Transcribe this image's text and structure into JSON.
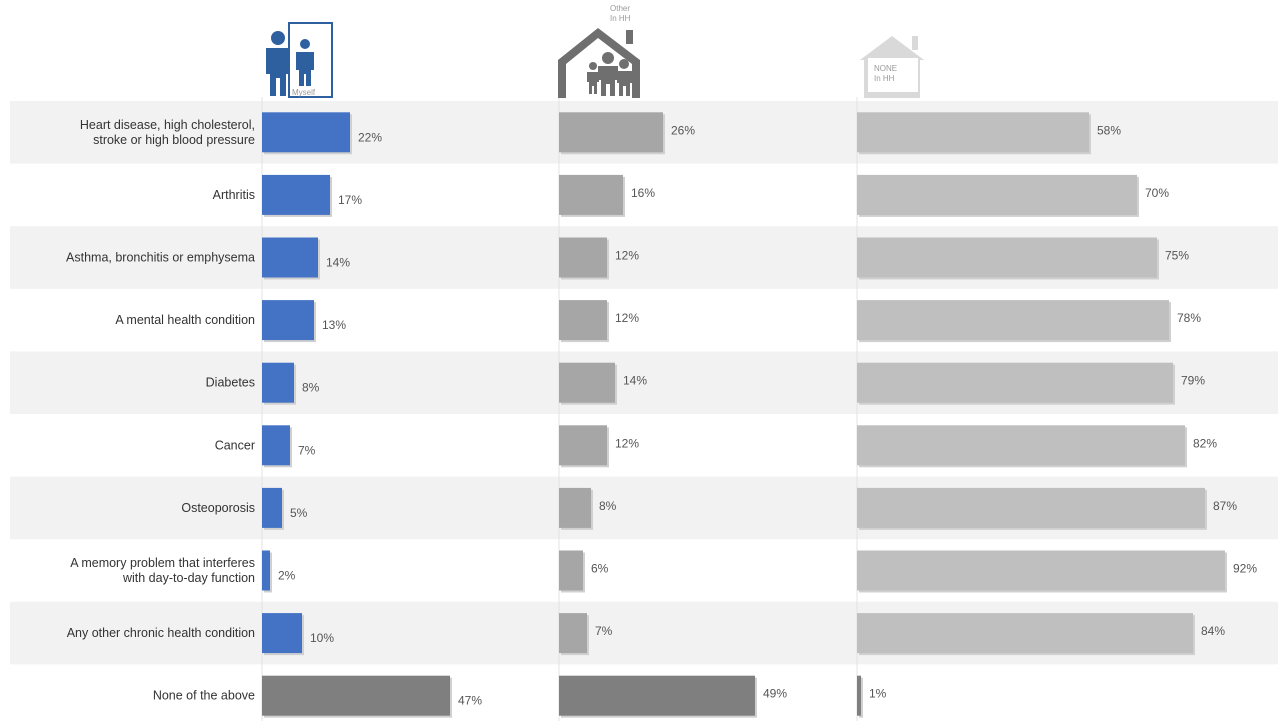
{
  "chart_data": {
    "type": "bar",
    "orientation": "horizontal",
    "categories": [
      [
        "Heart disease, high cholesterol,",
        "stroke or high blood pressure"
      ],
      [
        "Arthritis"
      ],
      [
        "Asthma, bronchitis or emphysema"
      ],
      [
        "A mental health condition"
      ],
      [
        "Diabetes"
      ],
      [
        "Cancer"
      ],
      [
        "Osteoporosis"
      ],
      [
        "A memory problem that interferes",
        "with day-to-day function"
      ],
      [
        "Any other chronic health condition"
      ],
      [
        "None of the above"
      ]
    ],
    "series": [
      {
        "name": "Myself",
        "values": [
          22,
          17,
          14,
          13,
          8,
          7,
          5,
          2,
          10,
          47
        ],
        "labels": [
          "22%",
          "17%",
          "14%",
          "13%",
          "8%",
          "7%",
          "5%",
          "2%",
          "10%",
          "47%"
        ],
        "color": "#4472C4",
        "last_color": "#7f7f7f"
      },
      {
        "name": "Other In HH",
        "values": [
          26,
          16,
          12,
          12,
          14,
          12,
          8,
          6,
          7,
          49
        ],
        "labels": [
          "26%",
          "16%",
          "12%",
          "12%",
          "14%",
          "12%",
          "8%",
          "6%",
          "7%",
          "49%"
        ],
        "color": "#a6a6a6",
        "last_color": "#7f7f7f"
      },
      {
        "name": "NONE In HH",
        "values": [
          58,
          70,
          75,
          78,
          79,
          82,
          87,
          92,
          84,
          1
        ],
        "labels": [
          "58%",
          "70%",
          "75%",
          "78%",
          "79%",
          "82%",
          "87%",
          "92%",
          "84%",
          "1%"
        ],
        "color": "#bfbfbf",
        "last_color": "#7f7f7f"
      }
    ],
    "icon_captions": [
      [
        "Myself"
      ],
      [
        "Other",
        "In HH"
      ],
      [
        "NONE",
        "In HH"
      ]
    ],
    "band_color": "#f2f2f2"
  }
}
